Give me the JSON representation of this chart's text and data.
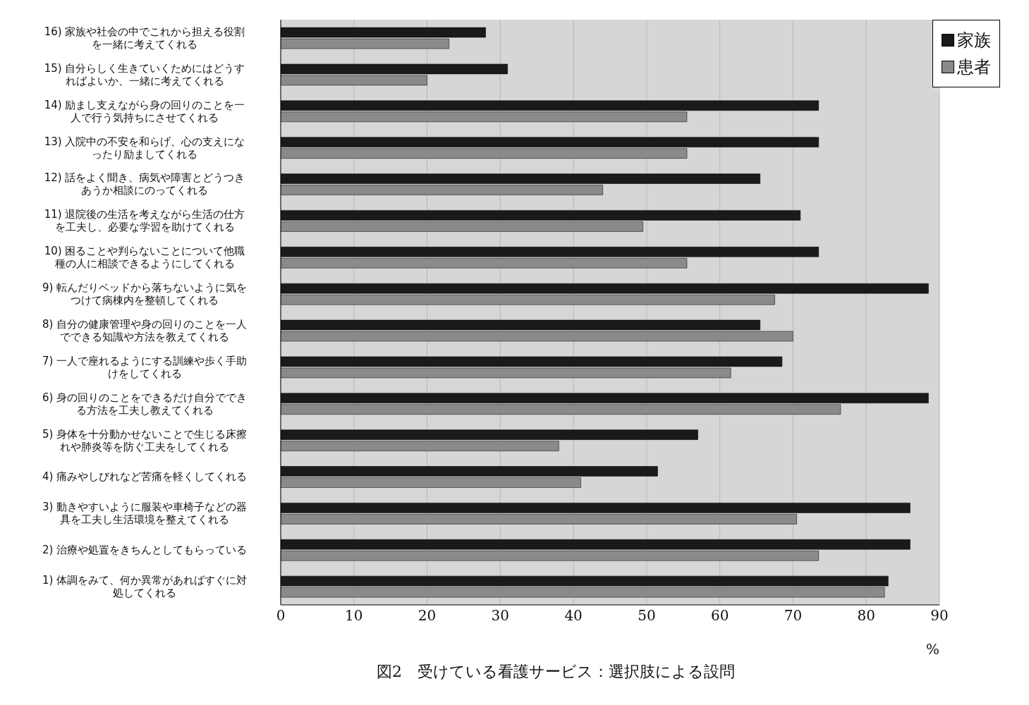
{
  "chart_data": {
    "type": "bar",
    "orientation": "horizontal",
    "title": "図2　受けている看護サービス：選択肢による設問",
    "xlabel": "%",
    "categories": [
      "16) 家族や社会の中でこれから担える役割を一緒に考えてくれる",
      "15) 自分らしく生きていくためにはどうすればよいか、一緒に考えてくれる",
      "14) 励まし支えながら身の回りのことを一人で行う気持ちにさせてくれる",
      "13) 入院中の不安を和らげ、心の支えになったり励ましてくれる",
      "12) 話をよく聞き、病気や障害とどうつきあうか相談にのってくれる",
      "11) 退院後の生活を考えながら生活の仕方を工夫し、必要な学習を助けてくれる",
      "10) 困ることや判らないことについて他職種の人に相談できるようにしてくれる",
      "9) 転んだりベッドから落ちないように気をつけて病棟内を整頓してくれる",
      "8) 自分の健康管理や身の回りのことを一人でできる知識や方法を教えてくれる",
      "7) 一人で座れるようにする訓練や歩く手助けをしてくれる",
      "6) 身の回りのことをできるだけ自分でできる方法を工夫し教えてくれる",
      "5) 身体を十分動かせないことで生じる床擦れや肺炎等を防ぐ工夫をしてくれる",
      "4) 痛みやしびれなど苦痛を軽くしてくれる",
      "3) 動きやすいように服装や車椅子などの器具を工夫し生活環境を整えてくれる",
      "2) 治療や処置をきちんとしてもらっている",
      "1) 体調をみて、何か異常があればすぐに対処してくれる"
    ],
    "series": [
      {
        "name": "家族",
        "color": "#1a1a1a",
        "values": [
          28,
          31,
          73.5,
          73.5,
          65.5,
          71,
          73.5,
          88.5,
          65.5,
          68.5,
          88.5,
          57,
          51.5,
          86,
          86,
          83
        ]
      },
      {
        "name": "患者",
        "color": "#8a8a8a",
        "values": [
          23,
          20,
          55.5,
          55.5,
          44,
          49.5,
          55.5,
          67.5,
          70,
          61.5,
          76.5,
          38,
          41,
          70.5,
          73.5,
          82.5
        ]
      }
    ],
    "xlim": [
      0,
      90
    ],
    "xticks": [
      0,
      10,
      20,
      30,
      40,
      50,
      60,
      70,
      80,
      90
    ],
    "grid": "x",
    "legend": "top right"
  }
}
